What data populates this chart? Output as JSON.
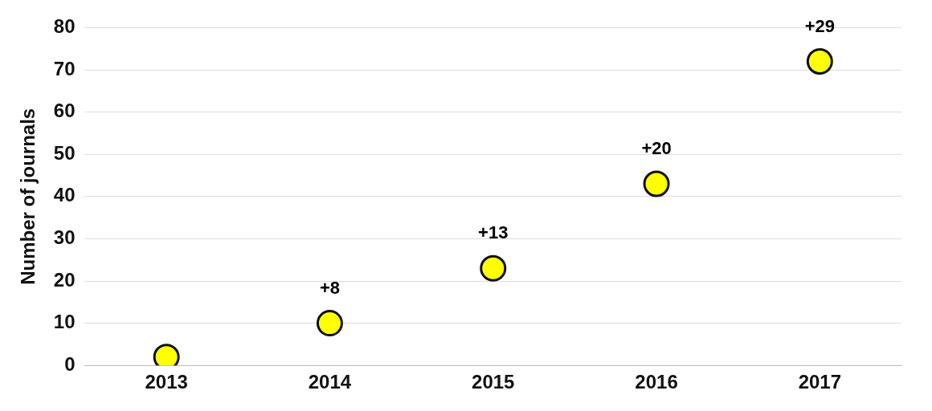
{
  "chart_data": {
    "type": "scatter",
    "ylabel": "Number of journals",
    "categories": [
      "2013",
      "2014",
      "2015",
      "2016",
      "2017"
    ],
    "series": [
      {
        "color": "#ffff00",
        "values": [
          2,
          10,
          23,
          43,
          72
        ]
      }
    ],
    "ylim": [
      0,
      80
    ],
    "yticks": [
      0,
      10,
      20,
      30,
      40,
      50,
      60,
      70,
      80
    ],
    "grid": "y",
    "marker": "circle",
    "legend": false,
    "annotations": [
      {
        "text": "+8",
        "x": "2014",
        "y": 10
      },
      {
        "text": "+13",
        "x": "2015",
        "y": 23
      },
      {
        "text": "+20",
        "x": "2016",
        "y": 43
      },
      {
        "text": "+29",
        "x": "2017",
        "y": 72
      }
    ]
  }
}
